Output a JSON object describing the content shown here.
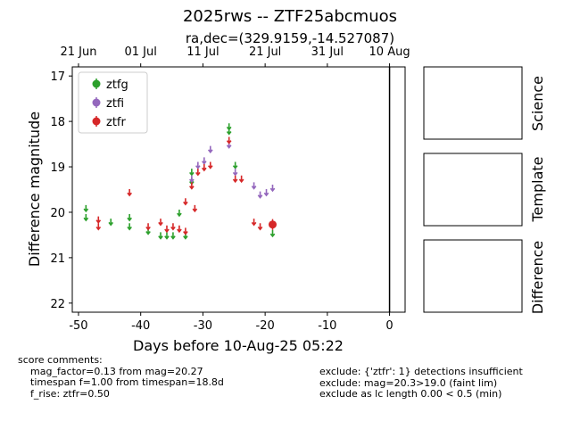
{
  "header": {
    "title": "2025rws -- ZTF25abcmuos",
    "subtitle": "ra,dec=(329.9159,-14.527087)"
  },
  "colors": {
    "ztfg": "#2ca02c",
    "ztfi": "#9467bd",
    "ztfr": "#d62728"
  },
  "chart_data": {
    "type": "scatter",
    "xlabel": "Days before 10-Aug-25 05:22",
    "ylabel": "Difference magnitude",
    "xlim": [
      -51,
      2.5
    ],
    "ylim": [
      22.2,
      16.8
    ],
    "y_inverted": true,
    "xticks": [
      -50,
      -40,
      -30,
      -20,
      -10,
      0
    ],
    "yticks": [
      17,
      18,
      19,
      20,
      21,
      22
    ],
    "top_axis_ticks": [
      {
        "x": -50,
        "label": "21 Jun"
      },
      {
        "x": -40,
        "label": "01 Jul"
      },
      {
        "x": -30,
        "label": "11 Jul"
      },
      {
        "x": -20,
        "label": "21 Jul"
      },
      {
        "x": -10,
        "label": "31 Jul"
      },
      {
        "x": 0,
        "label": "10 Aug"
      }
    ],
    "vline_x": 0,
    "legend_placement": "top-left",
    "series": [
      {
        "name": "ztfg",
        "upper_limits": [
          {
            "x": -48.8,
            "y": 19.9
          },
          {
            "x": -48.8,
            "y": 20.1
          },
          {
            "x": -44.8,
            "y": 20.2
          },
          {
            "x": -41.8,
            "y": 20.1
          },
          {
            "x": -41.8,
            "y": 20.3
          },
          {
            "x": -38.8,
            "y": 20.4
          },
          {
            "x": -36.8,
            "y": 20.5
          },
          {
            "x": -35.8,
            "y": 20.5
          },
          {
            "x": -34.8,
            "y": 20.5
          },
          {
            "x": -33.8,
            "y": 20.0
          },
          {
            "x": -32.8,
            "y": 20.5
          },
          {
            "x": -31.8,
            "y": 19.1
          },
          {
            "x": -31.8,
            "y": 19.3
          },
          {
            "x": -25.8,
            "y": 18.1
          },
          {
            "x": -25.8,
            "y": 18.2
          },
          {
            "x": -24.8,
            "y": 18.95
          },
          {
            "x": -18.8,
            "y": 20.45
          }
        ],
        "detections": []
      },
      {
        "name": "ztfi",
        "upper_limits": [
          {
            "x": -31.8,
            "y": 19.25
          },
          {
            "x": -30.8,
            "y": 18.95
          },
          {
            "x": -29.8,
            "y": 18.85
          },
          {
            "x": -28.8,
            "y": 18.6
          },
          {
            "x": -25.8,
            "y": 18.5
          },
          {
            "x": -24.8,
            "y": 19.1
          },
          {
            "x": -21.8,
            "y": 19.4
          },
          {
            "x": -20.8,
            "y": 19.6
          },
          {
            "x": -19.8,
            "y": 19.55
          },
          {
            "x": -18.8,
            "y": 19.45
          }
        ],
        "detections": []
      },
      {
        "name": "ztfr",
        "upper_limits": [
          {
            "x": -46.8,
            "y": 20.15
          },
          {
            "x": -46.8,
            "y": 20.3
          },
          {
            "x": -41.8,
            "y": 19.55
          },
          {
            "x": -38.8,
            "y": 20.3
          },
          {
            "x": -36.8,
            "y": 20.2
          },
          {
            "x": -35.8,
            "y": 20.35
          },
          {
            "x": -34.8,
            "y": 20.3
          },
          {
            "x": -33.8,
            "y": 20.35
          },
          {
            "x": -32.8,
            "y": 19.75
          },
          {
            "x": -32.8,
            "y": 20.4
          },
          {
            "x": -31.8,
            "y": 19.4
          },
          {
            "x": -31.3,
            "y": 19.9
          },
          {
            "x": -30.8,
            "y": 19.1
          },
          {
            "x": -29.8,
            "y": 19.0
          },
          {
            "x": -28.8,
            "y": 18.95
          },
          {
            "x": -25.8,
            "y": 18.4
          },
          {
            "x": -24.8,
            "y": 19.25
          },
          {
            "x": -23.8,
            "y": 19.25
          },
          {
            "x": -21.8,
            "y": 20.2
          },
          {
            "x": -20.8,
            "y": 20.3
          }
        ],
        "detections": [
          {
            "x": -18.8,
            "y": 20.27,
            "err": 0.12
          }
        ]
      }
    ]
  },
  "panels": {
    "labels": [
      "Science",
      "Template",
      "Difference"
    ]
  },
  "comments": {
    "heading": "score comments:",
    "left_lines": [
      "mag_factor=0.13 from mag=20.27",
      "timespan f=1.00 from timespan=18.8d",
      "f_rise: ztfr=0.50"
    ],
    "right_lines": [
      "exclude: {'ztfr': 1} detections insufficient",
      "exclude: mag=20.3>19.0 (faint lim)",
      "exclude as lc length 0.00 < 0.5 (min)"
    ]
  }
}
